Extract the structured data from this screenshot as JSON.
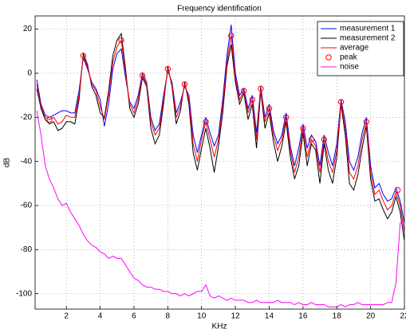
{
  "chart_data": {
    "type": "line",
    "title": "Frequency identification",
    "xlabel": "KHz",
    "ylabel": "dB",
    "xlim": [
      0.15,
      22
    ],
    "ylim": [
      -107,
      26
    ],
    "xticks": [
      2,
      4,
      6,
      8,
      10,
      12,
      14,
      16,
      18,
      20,
      22
    ],
    "yticks": [
      -100,
      -80,
      -60,
      -40,
      -20,
      0,
      20
    ],
    "grid": true,
    "legend": "upper right",
    "x": [
      0.25,
      0.5,
      0.75,
      1,
      1.25,
      1.5,
      1.75,
      2,
      2.25,
      2.5,
      2.75,
      3,
      3.25,
      3.5,
      3.75,
      4,
      4.25,
      4.5,
      4.75,
      5,
      5.25,
      5.5,
      5.75,
      6,
      6.25,
      6.5,
      6.75,
      7,
      7.25,
      7.5,
      7.75,
      8,
      8.25,
      8.5,
      8.75,
      9,
      9.25,
      9.5,
      9.75,
      10,
      10.25,
      10.5,
      10.75,
      11,
      11.25,
      11.5,
      11.75,
      12,
      12.25,
      12.5,
      12.75,
      13,
      13.25,
      13.5,
      13.75,
      14,
      14.25,
      14.5,
      14.75,
      15,
      15.25,
      15.5,
      15.75,
      16,
      16.25,
      16.5,
      16.75,
      17,
      17.25,
      17.5,
      17.75,
      18,
      18.25,
      18.5,
      18.75,
      19,
      19.25,
      19.5,
      19.75,
      20,
      20.25,
      20.5,
      20.75,
      21,
      21.25,
      21.5,
      21.75,
      22
    ],
    "series": [
      {
        "name": "measurement 1",
        "color": "#0000ff",
        "values": [
          -3,
          -14,
          -19,
          -20,
          -19,
          -18,
          -17,
          -17,
          -18,
          -18,
          -8,
          7,
          2,
          -4,
          -7,
          -12,
          -24,
          -14,
          2,
          9,
          11,
          -2,
          -13,
          -16,
          -10,
          0,
          -4,
          -20,
          -26,
          -23,
          -10,
          1,
          -4,
          -18,
          -13,
          -6,
          -10,
          -28,
          -36,
          -28,
          -20,
          -27,
          -33,
          -28,
          -12,
          8,
          22,
          0,
          -10,
          -7,
          -16,
          -10,
          -27,
          -6,
          -20,
          -14,
          -26,
          -32,
          -28,
          -18,
          -33,
          -42,
          -34,
          -23,
          -34,
          -28,
          -31,
          -42,
          -28,
          -36,
          -42,
          -32,
          -12,
          -22,
          -40,
          -44,
          -38,
          -27,
          -20,
          -42,
          -52,
          -50,
          -55,
          -58,
          -57,
          -52,
          -58,
          -68
        ]
      },
      {
        "name": "measurement 2",
        "color": "#000000",
        "values": [
          -7,
          -16,
          -21,
          -23,
          -22,
          -26,
          -25,
          -22,
          -22,
          -23,
          -12,
          9,
          4,
          -6,
          -10,
          -18,
          -20,
          -8,
          8,
          15,
          18,
          2,
          -16,
          -20,
          -14,
          -2,
          -6,
          -25,
          -32,
          -28,
          -14,
          3,
          -6,
          -23,
          -17,
          -4,
          -14,
          -36,
          -44,
          -34,
          -25,
          -34,
          -45,
          -33,
          -18,
          3,
          13,
          -4,
          -14,
          -9,
          -21,
          -14,
          -34,
          -8,
          -25,
          -18,
          -31,
          -40,
          -33,
          -22,
          -38,
          -48,
          -42,
          -27,
          -42,
          -32,
          -35,
          -50,
          -32,
          -44,
          -50,
          -38,
          -14,
          -28,
          -50,
          -53,
          -46,
          -34,
          -24,
          -48,
          -58,
          -57,
          -62,
          -66,
          -63,
          -56,
          -63,
          -76
        ]
      },
      {
        "name": "average",
        "color": "#ff0000",
        "values": [
          -5,
          -15,
          -20,
          -21,
          -20,
          -23,
          -22,
          -19,
          -20,
          -20,
          -10,
          8,
          3,
          -5,
          -8,
          -15,
          -21,
          -10,
          5,
          12,
          15,
          0,
          -14,
          -18,
          -12,
          -1,
          -5,
          -22,
          -28,
          -25,
          -12,
          2,
          -5,
          -20,
          -15,
          -5,
          -12,
          -32,
          -40,
          -30,
          -22,
          -30,
          -38,
          -30,
          -15,
          5,
          17,
          -2,
          -12,
          -8,
          -18,
          -12,
          -30,
          -7,
          -22,
          -16,
          -28,
          -35,
          -30,
          -20,
          -35,
          -45,
          -38,
          -25,
          -38,
          -30,
          -33,
          -45,
          -30,
          -40,
          -45,
          -35,
          -13,
          -25,
          -45,
          -48,
          -42,
          -30,
          -22,
          -45,
          -55,
          -53,
          -58,
          -62,
          -60,
          -54,
          -60,
          -72
        ]
      },
      {
        "name": "peak",
        "color": "#ff0000",
        "marker": "circle",
        "x": [
          1,
          3,
          5.25,
          6.5,
          8,
          9,
          10.25,
          11.75,
          12.5,
          13,
          13.5,
          14,
          15,
          16,
          16.5,
          17.25,
          18.25,
          19.75,
          21.6
        ],
        "values": [
          -21,
          8,
          15,
          -1,
          2,
          -5,
          -22,
          17,
          -8,
          -12,
          -7,
          -16,
          -20,
          -25,
          -30,
          -30,
          -13,
          -22,
          -53
        ]
      },
      {
        "name": "noise",
        "color": "#ff00ff",
        "values": [
          -17,
          -28,
          -42,
          -48,
          -52,
          -57,
          -60,
          -59,
          -63,
          -66,
          -69,
          -73,
          -76,
          -78,
          -79,
          -81,
          -82,
          -84,
          -83,
          -84,
          -84,
          -87,
          -90,
          -93,
          -94,
          -96,
          -97,
          -97,
          -98,
          -98,
          -99,
          -99,
          -100,
          -100,
          -101,
          -100,
          -101,
          -100,
          -99,
          -99,
          -96,
          -101,
          -102,
          -101,
          -102,
          -103,
          -102,
          -103,
          -103,
          -103,
          -104,
          -104,
          -103,
          -104,
          -104,
          -104,
          -104,
          -103,
          -104,
          -104,
          -104,
          -105,
          -104,
          -105,
          -105,
          -104,
          -105,
          -105,
          -105,
          -106,
          -106,
          -106,
          -105,
          -106,
          -105,
          -105,
          -104,
          -105,
          -105,
          -105,
          -105,
          -105,
          -105,
          -104,
          -104,
          -95,
          -68,
          -66
        ]
      }
    ]
  }
}
